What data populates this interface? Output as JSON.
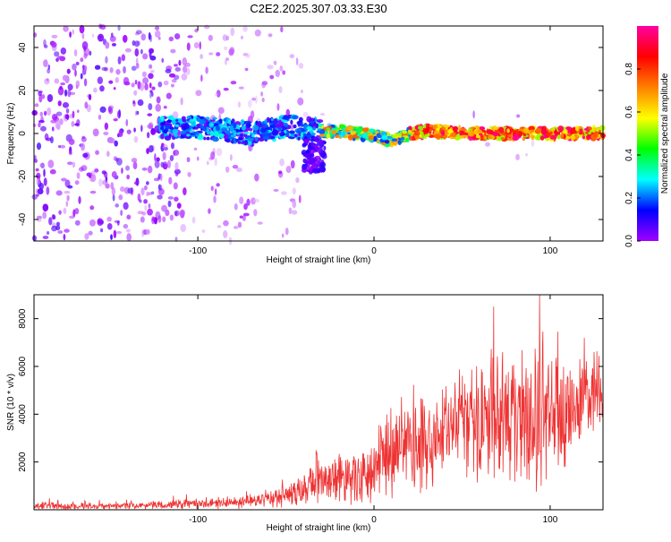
{
  "figure_title": "C2E2.2025.307.03.33.E30",
  "chart_data": [
    {
      "type": "heatmap",
      "title": "",
      "xlabel": "Height of straight line (km)",
      "ylabel": "Frequency (Hz)",
      "xlim": [
        -193,
        130
      ],
      "ylim": [
        -50,
        50
      ],
      "xticks": [
        -100,
        0,
        100
      ],
      "yticks": [
        -40,
        -20,
        0,
        20,
        40
      ],
      "ridge_center_hz": {
        "x": [
          -193,
          -110,
          -90,
          -70,
          -50,
          -35,
          -20,
          -10,
          0,
          5,
          10,
          15,
          20,
          30,
          40,
          50,
          60,
          80,
          100,
          130
        ],
        "y": [
          0,
          3,
          2,
          0,
          3,
          2,
          1,
          0,
          -1,
          -2,
          -3,
          -2,
          0,
          1,
          1,
          0,
          0,
          0,
          0,
          0
        ]
      },
      "colorbar": {
        "label": "Normalized spectral amplitude",
        "ticks": [
          0.0,
          0.2,
          0.4,
          0.6,
          0.8
        ],
        "range": [
          0,
          1
        ],
        "colormap": [
          "#ffffff",
          "#a000ff",
          "#0000ff",
          "#00ffff",
          "#00ff00",
          "#ffff00",
          "#ff8000",
          "#ff0000",
          "#ff00a0"
        ]
      }
    },
    {
      "type": "line",
      "title": "",
      "xlabel": "Height of straight line (km)",
      "ylabel": "SNR (10 * v/v)",
      "xlim": [
        -193,
        130
      ],
      "ylim": [
        0,
        9000
      ],
      "xticks": [
        -100,
        0,
        100
      ],
      "yticks": [
        2000,
        4000,
        6000,
        8000
      ],
      "color": "#ee3333",
      "envelope": {
        "x": [
          -193,
          -150,
          -100,
          -80,
          -60,
          -50,
          -40,
          -32,
          -30,
          -25,
          -20,
          -10,
          0,
          10,
          20,
          30,
          40,
          50,
          60,
          70,
          80,
          90,
          95,
          100,
          110,
          120,
          130
        ],
        "mean": [
          150,
          150,
          250,
          300,
          450,
          550,
          800,
          1400,
          1300,
          1100,
          1200,
          1400,
          1800,
          2300,
          2700,
          3000,
          3200,
          3400,
          3500,
          3700,
          3900,
          4000,
          4000,
          4100,
          4300,
          4600,
          4800
        ],
        "spread": [
          180,
          150,
          200,
          250,
          350,
          500,
          700,
          1200,
          1000,
          900,
          1000,
          1300,
          1500,
          1800,
          2000,
          2200,
          2400,
          2500,
          2600,
          2700,
          2800,
          3000,
          3200,
          3000,
          2700,
          2000,
          1500
        ]
      },
      "peak": {
        "x": 94,
        "y": 9000
      }
    }
  ]
}
